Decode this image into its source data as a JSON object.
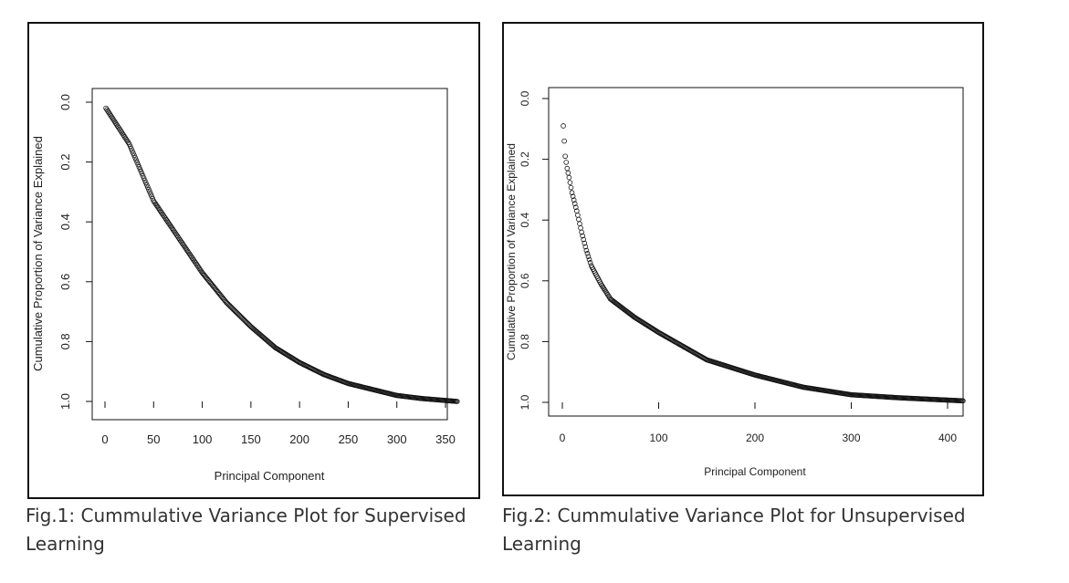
{
  "captions": {
    "fig1": "Fig.1: Cummulative Variance Plot for Supervised Learning",
    "fig2": "Fig.2: Cummulative Variance Plot for Unsupervised Learning"
  },
  "chart_data": [
    {
      "type": "scatter",
      "title": "",
      "xlabel": "Principal Component",
      "ylabel": "Cumulative Proportion of Variance Explained",
      "xlim": [
        0,
        362
      ],
      "ylim": [
        0,
        1
      ],
      "xticks": [
        "0",
        "50",
        "100",
        "150",
        "200",
        "250",
        "300",
        "350"
      ],
      "yticks": [
        "0.0",
        "0.2",
        "0.4",
        "0.6",
        "0.8",
        "1.0"
      ],
      "marker": "open-circle",
      "grid": false,
      "n_points": 362,
      "sample_points": [
        {
          "x": 1,
          "y": 0.02
        },
        {
          "x": 25,
          "y": 0.14
        },
        {
          "x": 50,
          "y": 0.33
        },
        {
          "x": 75,
          "y": 0.45
        },
        {
          "x": 100,
          "y": 0.57
        },
        {
          "x": 125,
          "y": 0.67
        },
        {
          "x": 150,
          "y": 0.75
        },
        {
          "x": 175,
          "y": 0.82
        },
        {
          "x": 200,
          "y": 0.87
        },
        {
          "x": 225,
          "y": 0.91
        },
        {
          "x": 250,
          "y": 0.94
        },
        {
          "x": 275,
          "y": 0.96
        },
        {
          "x": 300,
          "y": 0.98
        },
        {
          "x": 325,
          "y": 0.99
        },
        {
          "x": 362,
          "y": 1.0
        }
      ]
    },
    {
      "type": "scatter",
      "title": "",
      "xlabel": "Principal Component",
      "ylabel": "Cumulative Proportion of Variance Explained",
      "xlim": [
        0,
        416
      ],
      "ylim": [
        0,
        1
      ],
      "xticks": [
        "0",
        "100",
        "200",
        "300",
        "400"
      ],
      "yticks": [
        "0.0",
        "0.2",
        "0.4",
        "0.6",
        "0.8",
        "1.0"
      ],
      "marker": "open-circle",
      "grid": false,
      "n_points": 416,
      "sample_points": [
        {
          "x": 1,
          "y": 0.09
        },
        {
          "x": 2,
          "y": 0.14
        },
        {
          "x": 3,
          "y": 0.19
        },
        {
          "x": 5,
          "y": 0.23
        },
        {
          "x": 7,
          "y": 0.26
        },
        {
          "x": 10,
          "y": 0.31
        },
        {
          "x": 15,
          "y": 0.37
        },
        {
          "x": 20,
          "y": 0.44
        },
        {
          "x": 25,
          "y": 0.5
        },
        {
          "x": 30,
          "y": 0.55
        },
        {
          "x": 40,
          "y": 0.61
        },
        {
          "x": 50,
          "y": 0.66
        },
        {
          "x": 75,
          "y": 0.72
        },
        {
          "x": 100,
          "y": 0.77
        },
        {
          "x": 150,
          "y": 0.86
        },
        {
          "x": 200,
          "y": 0.91
        },
        {
          "x": 250,
          "y": 0.95
        },
        {
          "x": 300,
          "y": 0.975
        },
        {
          "x": 350,
          "y": 0.985
        },
        {
          "x": 416,
          "y": 0.995
        }
      ]
    }
  ]
}
